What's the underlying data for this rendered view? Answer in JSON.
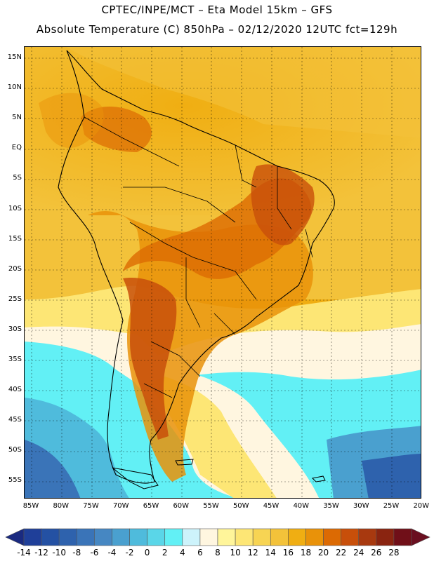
{
  "header": {
    "line1": "CPTEC/INPE/MCT –  Eta Model 15km – GFS",
    "line2": "Absolute Temperature (C) 850hPa – 02/12/2020 12UTC fct=129h"
  },
  "map": {
    "lat_labels": [
      "15N",
      "10N",
      "5N",
      "EQ",
      "5S",
      "10S",
      "15S",
      "20S",
      "25S",
      "30S",
      "35S",
      "40S",
      "45S",
      "50S",
      "55S"
    ],
    "lon_labels": [
      "85W",
      "80W",
      "75W",
      "70W",
      "65W",
      "60W",
      "55W",
      "50W",
      "45W",
      "40W",
      "35W",
      "30W",
      "25W",
      "20W"
    ]
  },
  "colorbar": {
    "labels": [
      "-14",
      "-12",
      "-10",
      "-8",
      "-6",
      "-4",
      "-2",
      "0",
      "2",
      "4",
      "6",
      "8",
      "10",
      "12",
      "14",
      "16",
      "18",
      "20",
      "22",
      "24",
      "26",
      "28"
    ],
    "colors": [
      "#1f3f99",
      "#2451a3",
      "#2e62ad",
      "#3a74b8",
      "#4687c2",
      "#4aa0cf",
      "#4fbbdc",
      "#5ad6e8",
      "#62f0f5",
      "#cdf3fb",
      "#fff6e0",
      "#fff59a",
      "#fde675",
      "#f7d453",
      "#f3c23a",
      "#f0ae12",
      "#e99209",
      "#dc6a03",
      "#c84f0a",
      "#a8390f",
      "#8a2410",
      "#700f18"
    ]
  }
}
